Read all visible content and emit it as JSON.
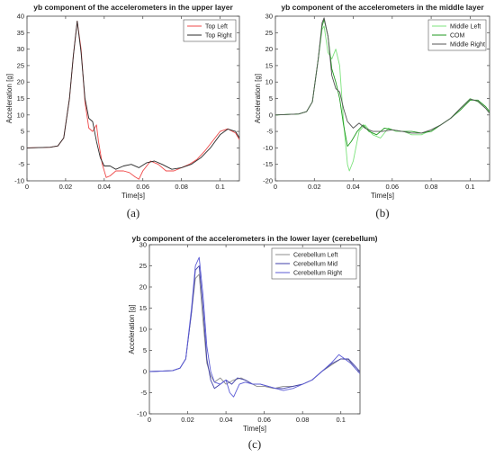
{
  "chart_data": [
    {
      "type": "line",
      "title": "yb component of the accelerometers in the upper layer",
      "xlabel": "Time[s]",
      "ylabel": "Acceleration [g]",
      "caption": "(a)",
      "xlim": [
        0,
        0.11
      ],
      "ylim": [
        -10,
        40
      ],
      "xticks": [
        "0",
        "0.02",
        "0.04",
        "0.06",
        "0.08",
        "0.1"
      ],
      "yticks": [
        "-10",
        "-5",
        "0",
        "5",
        "10",
        "15",
        "20",
        "25",
        "30",
        "35",
        "40"
      ],
      "legend_position": "top-right",
      "series": [
        {
          "name": "Top Left",
          "color": "#ef4848",
          "x": [
            0,
            0.012,
            0.016,
            0.019,
            0.022,
            0.024,
            0.026,
            0.028,
            0.03,
            0.032,
            0.034,
            0.036,
            0.037,
            0.039,
            0.041,
            0.043,
            0.046,
            0.05,
            0.053,
            0.056,
            0.058,
            0.06,
            0.064,
            0.068,
            0.072,
            0.076,
            0.08,
            0.084,
            0.088,
            0.092,
            0.096,
            0.1,
            0.104,
            0.108,
            0.11
          ],
          "y": [
            0,
            0.2,
            0.6,
            3,
            15,
            28,
            38.5,
            30,
            14,
            6,
            5,
            7,
            2,
            -5,
            -9,
            -8.5,
            -7,
            -7,
            -7.5,
            -8.8,
            -9.5,
            -7,
            -4,
            -5,
            -7,
            -7,
            -6,
            -5,
            -3.5,
            -1,
            2,
            5,
            5.8,
            4.5,
            2.5
          ]
        },
        {
          "name": "Top Right",
          "color": "#2b2b2b",
          "x": [
            0,
            0.012,
            0.016,
            0.019,
            0.022,
            0.024,
            0.026,
            0.028,
            0.03,
            0.032,
            0.034,
            0.036,
            0.038,
            0.04,
            0.043,
            0.046,
            0.05,
            0.054,
            0.058,
            0.062,
            0.066,
            0.07,
            0.075,
            0.08,
            0.085,
            0.09,
            0.095,
            0.1,
            0.104,
            0.108,
            0.11
          ],
          "y": [
            0,
            0.2,
            0.6,
            3,
            15,
            28,
            38.5,
            29,
            15,
            9,
            8,
            2,
            -3,
            -5.5,
            -5.5,
            -6.5,
            -5.5,
            -5,
            -6,
            -4.5,
            -4,
            -5,
            -6.5,
            -6,
            -5,
            -3,
            0,
            4,
            5.7,
            5,
            3
          ]
        }
      ]
    },
    {
      "type": "line",
      "title": "yb component of the accelerometers in the middle layer",
      "xlabel": "Time[s]",
      "ylabel": "Acceleration [g]",
      "caption": "(b)",
      "xlim": [
        0,
        0.11
      ],
      "ylim": [
        -20,
        30
      ],
      "xticks": [
        "0",
        "0.02",
        "0.04",
        "0.06",
        "0.08",
        "0.1"
      ],
      "yticks": [
        "-20",
        "-15",
        "-10",
        "-5",
        "0",
        "5",
        "10",
        "15",
        "20",
        "25",
        "30"
      ],
      "legend_position": "top-right",
      "series": [
        {
          "name": "Middle Left",
          "color": "#7de37d",
          "x": [
            0,
            0.012,
            0.016,
            0.019,
            0.022,
            0.024,
            0.025,
            0.027,
            0.029,
            0.031,
            0.033,
            0.035,
            0.037,
            0.038,
            0.04,
            0.043,
            0.046,
            0.05,
            0.054,
            0.058,
            0.062,
            0.066,
            0.07,
            0.075,
            0.08,
            0.085,
            0.09,
            0.095,
            0.1,
            0.104,
            0.108,
            0.11
          ],
          "y": [
            0,
            0.3,
            1,
            4,
            17,
            26,
            27,
            19,
            17,
            20,
            15,
            -2,
            -15,
            -17,
            -14,
            -5,
            -3,
            -6,
            -7,
            -4,
            -5,
            -5,
            -6,
            -6,
            -4.5,
            -3,
            -1,
            2,
            5,
            4,
            2,
            0.5
          ]
        },
        {
          "name": "COM",
          "color": "#1f9a1f",
          "x": [
            0,
            0.012,
            0.016,
            0.019,
            0.022,
            0.024,
            0.025,
            0.027,
            0.029,
            0.031,
            0.033,
            0.035,
            0.037,
            0.039,
            0.042,
            0.045,
            0.048,
            0.052,
            0.056,
            0.06,
            0.065,
            0.07,
            0.075,
            0.08,
            0.085,
            0.09,
            0.095,
            0.1,
            0.104,
            0.108,
            0.11
          ],
          "y": [
            0,
            0.3,
            1,
            4,
            17,
            27,
            29,
            24,
            14,
            10,
            5,
            -3,
            -9.5,
            -8,
            -5,
            -3,
            -5,
            -6,
            -4,
            -4.5,
            -5,
            -5,
            -5.5,
            -5,
            -3,
            -1,
            1.5,
            4.5,
            4.5,
            2.5,
            1
          ]
        },
        {
          "name": "Middle Right",
          "color": "#555555",
          "x": [
            0,
            0.012,
            0.016,
            0.019,
            0.022,
            0.024,
            0.025,
            0.027,
            0.029,
            0.031,
            0.033,
            0.035,
            0.037,
            0.04,
            0.043,
            0.046,
            0.05,
            0.055,
            0.06,
            0.065,
            0.07,
            0.075,
            0.08,
            0.085,
            0.09,
            0.095,
            0.1,
            0.104,
            0.108,
            0.11
          ],
          "y": [
            0,
            0.3,
            1,
            4,
            17,
            28,
            29.5,
            24,
            12,
            8,
            7,
            2,
            -2,
            -4,
            -2.5,
            -4,
            -5,
            -5,
            -4.5,
            -5,
            -5.5,
            -5.5,
            -4.5,
            -3,
            -1,
            2,
            4.8,
            4.2,
            2,
            0.5
          ]
        }
      ]
    },
    {
      "type": "line",
      "title": "yb component of the accelerometers in the lower layer (cerebellum)",
      "xlabel": "Time[s]",
      "ylabel": "Acceleration [g]",
      "caption": "(c)",
      "xlim": [
        0,
        0.11
      ],
      "ylim": [
        -10,
        30
      ],
      "xticks": [
        "0",
        "0.02",
        "0.04",
        "0.06",
        "0.08",
        "0.1"
      ],
      "yticks": [
        "-10",
        "-5",
        "0",
        "5",
        "10",
        "15",
        "20",
        "25",
        "30"
      ],
      "legend_position": "top-right",
      "series": [
        {
          "name": "Cerebellum Left",
          "color": "#8c8c8c",
          "x": [
            0,
            0.012,
            0.016,
            0.019,
            0.022,
            0.024,
            0.026,
            0.028,
            0.03,
            0.032,
            0.034,
            0.037,
            0.04,
            0.044,
            0.048,
            0.052,
            0.056,
            0.06,
            0.065,
            0.07,
            0.075,
            0.08,
            0.085,
            0.09,
            0.095,
            0.1,
            0.104,
            0.108,
            0.11
          ],
          "y": [
            0,
            0.2,
            0.8,
            3,
            14,
            22,
            23,
            12,
            2,
            -1,
            -2.5,
            -1.5,
            -3,
            -2,
            -1.5,
            -2.5,
            -3.5,
            -3.5,
            -4,
            -3.5,
            -3.5,
            -3,
            -2,
            0,
            1.5,
            3,
            2.8,
            0.5,
            0
          ]
        },
        {
          "name": "Cerebellum Mid",
          "color": "#3f3fa8",
          "x": [
            0,
            0.012,
            0.016,
            0.019,
            0.022,
            0.024,
            0.026,
            0.028,
            0.03,
            0.032,
            0.034,
            0.037,
            0.04,
            0.043,
            0.046,
            0.05,
            0.054,
            0.058,
            0.062,
            0.066,
            0.07,
            0.075,
            0.08,
            0.085,
            0.09,
            0.095,
            0.1,
            0.104,
            0.108,
            0.11
          ],
          "y": [
            0,
            0.2,
            0.8,
            3,
            14,
            24,
            25,
            15,
            3,
            -2,
            -4,
            -3,
            -2,
            -3,
            -1.5,
            -2,
            -3,
            -3,
            -3.5,
            -4,
            -4,
            -3.5,
            -3,
            -2,
            0,
            1.8,
            3,
            3,
            1,
            0
          ]
        },
        {
          "name": "Cerebellum Right",
          "color": "#5b5bd6",
          "x": [
            0,
            0.012,
            0.016,
            0.019,
            0.022,
            0.024,
            0.026,
            0.028,
            0.03,
            0.032,
            0.034,
            0.037,
            0.04,
            0.042,
            0.044,
            0.047,
            0.05,
            0.054,
            0.058,
            0.062,
            0.066,
            0.07,
            0.075,
            0.08,
            0.085,
            0.09,
            0.095,
            0.099,
            0.102,
            0.105,
            0.108,
            0.11
          ],
          "y": [
            0,
            0.2,
            0.8,
            3,
            15,
            25,
            27,
            18,
            6,
            0,
            -2.5,
            -3,
            -2,
            -5,
            -6,
            -3,
            -2.5,
            -3,
            -3,
            -3.5,
            -4,
            -4.5,
            -4,
            -3,
            -2,
            0,
            2,
            4,
            3,
            2,
            0.5,
            -0.5
          ]
        }
      ]
    }
  ]
}
